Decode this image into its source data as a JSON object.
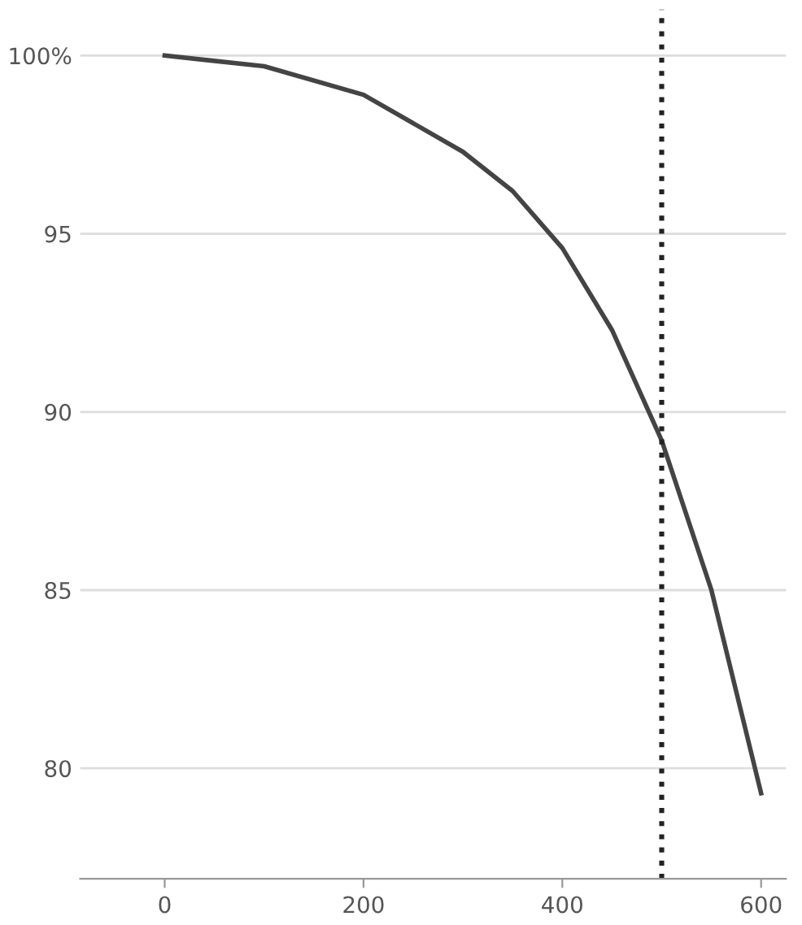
{
  "chart_data": {
    "type": "line",
    "x": [
      0,
      100,
      200,
      300,
      350,
      400,
      450,
      500,
      550,
      600
    ],
    "series": [
      {
        "color": "#444444",
        "values": [
          100,
          99.7,
          98.9,
          97.3,
          96.2,
          94.6,
          92.3,
          89.2,
          85.0,
          79.3
        ]
      }
    ],
    "xlim": [
      -85,
      625
    ],
    "ylim": [
      76.9,
      101.3
    ],
    "xticks": [
      0,
      200,
      400,
      600
    ],
    "yticks": [
      80,
      85,
      90,
      95,
      {
        "value": 100,
        "label": "100%"
      }
    ],
    "grid": "y",
    "marker": "none",
    "line_style": "solid",
    "ref_lines": [
      {
        "axis": "x",
        "value": 500,
        "color": "#222222",
        "line_style": "dotted"
      }
    ]
  }
}
